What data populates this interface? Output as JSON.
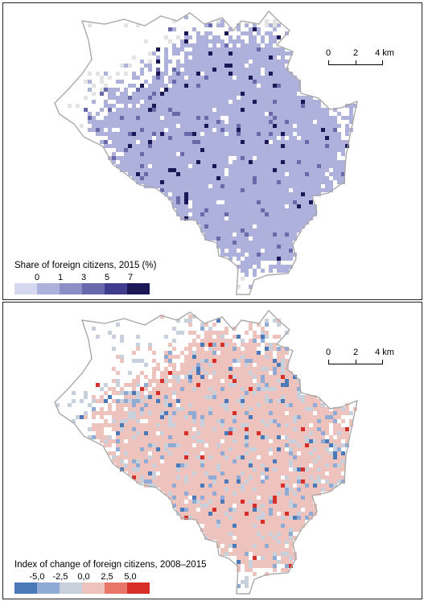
{
  "panels": [
    {
      "scale": {
        "labels": [
          "0",
          "2",
          "4 km"
        ]
      },
      "legend": {
        "title": "Share of foreign citizens, 2015 (%)",
        "ticks": [
          "0",
          "1",
          "3",
          "5",
          "7"
        ],
        "colors": [
          "#d6d8f0",
          "#aeb1dc",
          "#8c8ec6",
          "#6a69ac",
          "#403c8e",
          "#1c1858"
        ]
      }
    },
    {
      "scale": {
        "labels": [
          "0",
          "2",
          "4 km"
        ]
      },
      "legend": {
        "title": "Index of change of foreign citizens, 2008–2015",
        "ticks": [
          "-5,0",
          "-2,5",
          "0,0",
          "2,5",
          "5,0"
        ],
        "colors": [
          "#4b79b8",
          "#8faad4",
          "#c8d0dc",
          "#efc3bd",
          "#e8776a",
          "#d62f27"
        ]
      }
    }
  ],
  "boundary_color": "#a9a9a9"
}
